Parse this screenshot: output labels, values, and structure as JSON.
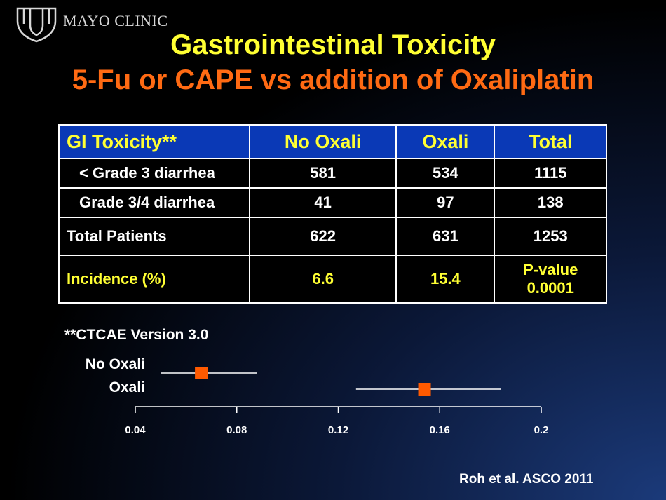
{
  "header": {
    "logo_text": "MAYO CLINIC"
  },
  "title": {
    "line1": "Gastrointestinal Toxicity",
    "line2": "5-Fu or CAPE vs addition of Oxaliplatin"
  },
  "table": {
    "headers": [
      "GI Toxicity**",
      "No Oxali",
      "Oxali",
      "Total"
    ],
    "rows": [
      [
        "< Grade 3 diarrhea",
        "581",
        "534",
        "1115"
      ],
      [
        "Grade 3/4 diarrhea",
        "41",
        "97",
        "138"
      ],
      [
        "Total Patients",
        "622",
        "631",
        "1253"
      ],
      [
        "Incidence (%)",
        "6.6",
        "15.4",
        "P-value",
        "0.0001"
      ]
    ]
  },
  "footnote": "**CTCAE Version 3.0",
  "citation": "Roh et al. ASCO 2011",
  "colors": {
    "title1": "#ffff33",
    "title2": "#ff6a13",
    "header_bg": "#0a39b6",
    "marker": "#ff5a00"
  },
  "chart_data": {
    "type": "scatter",
    "categories": [
      "No Oxali",
      "Oxali"
    ],
    "series": [
      {
        "name": "No Oxali",
        "point": 0.066,
        "ci": [
          0.05,
          0.088
        ]
      },
      {
        "name": "Oxali",
        "point": 0.154,
        "ci": [
          0.127,
          0.184
        ]
      }
    ],
    "xlim": [
      0.04,
      0.2
    ],
    "xticks": [
      "0.04",
      "0.08",
      "0.12",
      "0.16",
      "0.2"
    ],
    "grid": false
  }
}
